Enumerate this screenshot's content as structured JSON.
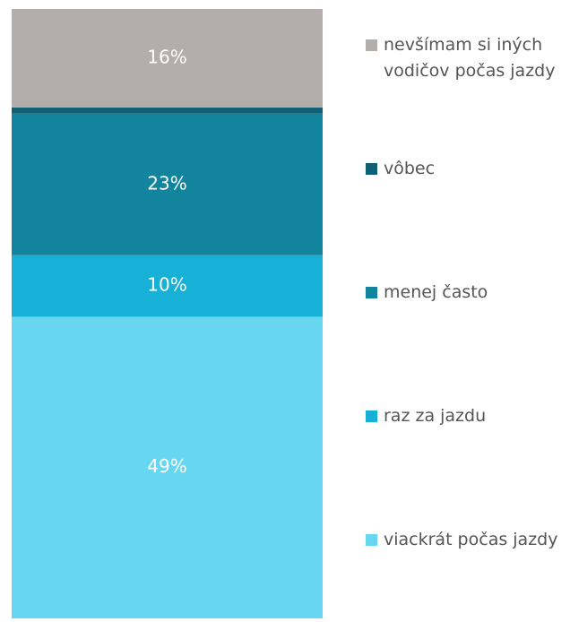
{
  "chart_data": {
    "type": "bar",
    "stacked": true,
    "ylim": [
      0,
      99
    ],
    "series": [
      {
        "name": "viackrát počas jazdy",
        "color": "#67d6f0",
        "values": [
          49
        ],
        "value_labels": [
          "49%"
        ]
      },
      {
        "name": "raz za jazdu",
        "color": "#17b0d6",
        "values": [
          10
        ],
        "value_labels": [
          "10%"
        ]
      },
      {
        "name": "menej často",
        "color": "#12849e",
        "values": [
          23
        ],
        "value_labels": [
          "23%"
        ]
      },
      {
        "name": "vôbec",
        "color": "#0f5f75",
        "values": [
          1
        ]
      },
      {
        "name": "nevšímam si iných vodičov počas jazdy",
        "color": "#b3aeab",
        "values": [
          16
        ],
        "value_labels": [
          "16%"
        ]
      }
    ]
  }
}
